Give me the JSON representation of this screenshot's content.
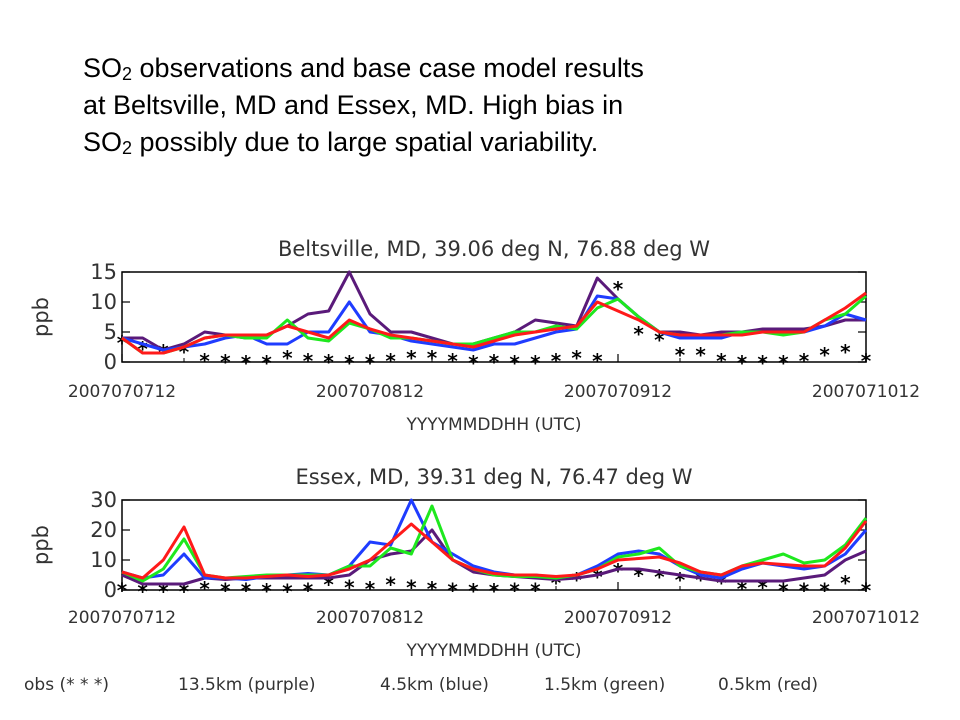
{
  "slide": {
    "title_line1_a": "SO",
    "title_line1_sub": "2",
    "title_line1_b": " observations and base case model results",
    "title_line2": "at Beltsville, MD and Essex, MD.  High bias in",
    "title_line3_a": "SO",
    "title_line3_sub": "2",
    "title_line3_b": " possibly due to large spatial variability."
  },
  "legend_labels": {
    "obs": "obs (* * *)",
    "purple": "13.5km (purple)",
    "blue": "4.5km (blue)",
    "green": "1.5km (green)",
    "red": "0.5km (red)"
  },
  "colors": {
    "obs": "#000000",
    "purple": "#5a1a7a",
    "blue": "#1f3cff",
    "green": "#1ee81e",
    "red": "#ff1a1a",
    "axis": "#000000",
    "text": "#333333"
  },
  "chart_data": [
    {
      "type": "line",
      "title": "Beltsville, MD, 39.06 deg N, 76.88 deg W",
      "xlabel": "YYYYMMDDHH (UTC)",
      "ylabel": "ppb",
      "x_ticks": [
        "2007070712",
        "2007070812",
        "2007070912",
        "2007071012"
      ],
      "x_range_hours": [
        0,
        72
      ],
      "y_ticks": [
        0,
        5,
        10,
        15
      ],
      "ylim": [
        0,
        15
      ],
      "x": [
        0,
        2,
        4,
        6,
        8,
        10,
        12,
        14,
        16,
        18,
        20,
        22,
        24,
        26,
        28,
        30,
        32,
        34,
        36,
        38,
        40,
        42,
        44,
        46,
        48,
        50,
        52,
        54,
        56,
        58,
        60,
        62,
        64,
        66,
        68,
        70,
        72
      ],
      "series": [
        {
          "name": "obs",
          "marker": "asterisk",
          "values": [
            3.5,
            2.5,
            2,
            2,
            0.5,
            0.3,
            0.2,
            0.2,
            1,
            0.5,
            0.3,
            0.2,
            0.2,
            0.5,
            1,
            1,
            0.5,
            0.2,
            0.3,
            0.2,
            0.2,
            0.5,
            1,
            0.5,
            12.5,
            5,
            4,
            1.5,
            1.5,
            0.5,
            0.2,
            0.2,
            0.2,
            0.5,
            1.5,
            2,
            0.5
          ]
        },
        {
          "name": "13.5km",
          "values": [
            4,
            4,
            2,
            3,
            5,
            4.5,
            4,
            4.5,
            6,
            8,
            8.5,
            16,
            8,
            5,
            5,
            4,
            3,
            3,
            4,
            5,
            7,
            6.5,
            6,
            14,
            10.5,
            7.5,
            5,
            5,
            4.5,
            5,
            5,
            5.5,
            5.5,
            5.5,
            6,
            7,
            7
          ]
        },
        {
          "name": "4.5km",
          "values": [
            4,
            3,
            2,
            2.5,
            3,
            4,
            4.5,
            3,
            3,
            5,
            5,
            10,
            5,
            4.5,
            3.5,
            3,
            2.5,
            2,
            3,
            3,
            4,
            5,
            5.5,
            11,
            10.5,
            7.5,
            5,
            4,
            4,
            4,
            5,
            5,
            5,
            5,
            6,
            8,
            7
          ]
        },
        {
          "name": "1.5km",
          "values": [
            4,
            1.5,
            1.5,
            2.5,
            4,
            4.5,
            4,
            4,
            7,
            4,
            3.5,
            6.5,
            5.5,
            4,
            4,
            3.5,
            3,
            3,
            4,
            5,
            5,
            6,
            5.5,
            9,
            10.5,
            7.5,
            5,
            4.5,
            4.5,
            4.5,
            5,
            5,
            4.5,
            5,
            7,
            8,
            11
          ]
        },
        {
          "name": "0.5km",
          "values": [
            4,
            1.5,
            1.5,
            2.5,
            4,
            4.5,
            4.5,
            4.5,
            6,
            5,
            4,
            7,
            5.5,
            4.5,
            4,
            3.5,
            3,
            2.5,
            3.5,
            4.5,
            5,
            5.5,
            6,
            10,
            8.5,
            7,
            5,
            4.5,
            4.5,
            4.5,
            4.5,
            5,
            5,
            5,
            7,
            9,
            11.5
          ]
        }
      ]
    },
    {
      "type": "line",
      "title": "Essex, MD, 39.31 deg N, 76.47 deg W",
      "xlabel": "YYYYMMDDHH (UTC)",
      "ylabel": "ppb",
      "x_ticks": [
        "2007070712",
        "2007070812",
        "2007070912",
        "2007071012"
      ],
      "x_range_hours": [
        0,
        72
      ],
      "y_ticks": [
        0,
        10,
        20,
        30
      ],
      "ylim": [
        0,
        30
      ],
      "x": [
        0,
        2,
        4,
        6,
        8,
        10,
        12,
        14,
        16,
        18,
        20,
        22,
        24,
        26,
        28,
        30,
        32,
        34,
        36,
        38,
        40,
        42,
        44,
        46,
        48,
        50,
        52,
        54,
        56,
        58,
        60,
        62,
        64,
        66,
        68,
        70,
        72
      ],
      "series": [
        {
          "name": "obs",
          "marker": "asterisk",
          "values": [
            0.5,
            0.2,
            0.2,
            0.2,
            1,
            0.5,
            0.5,
            0.3,
            0.2,
            0.5,
            2.5,
            1.5,
            1,
            2.5,
            1.5,
            1,
            0.5,
            0.3,
            0.3,
            0.5,
            0.5,
            3,
            4,
            5,
            7,
            5.5,
            5,
            4,
            4,
            3,
            1,
            1.5,
            0.5,
            0.5,
            0.5,
            3,
            0.5
          ]
        },
        {
          "name": "13.5km",
          "values": [
            5,
            2,
            2,
            2,
            4,
            3.5,
            4,
            4,
            4,
            4,
            4,
            5,
            10,
            12,
            13,
            20,
            10,
            6,
            5,
            4.5,
            4,
            3.5,
            4,
            5,
            7,
            7,
            6,
            5,
            4,
            3,
            3,
            3,
            3,
            4,
            5,
            10,
            13
          ]
        },
        {
          "name": "4.5km",
          "values": [
            6,
            4,
            5,
            12,
            4,
            4,
            3.5,
            4.5,
            5,
            5.5,
            5,
            8,
            16,
            15,
            30,
            16,
            12,
            8,
            6,
            5,
            5,
            4,
            5,
            8,
            12,
            13,
            12,
            8,
            5,
            4,
            7,
            9,
            8,
            7,
            8,
            12,
            20
          ]
        },
        {
          "name": "1.5km",
          "values": [
            6,
            3,
            7,
            17,
            5,
            4,
            4.5,
            5,
            5,
            5,
            5,
            8,
            8,
            14,
            12,
            28,
            10,
            7,
            5,
            4.5,
            4.5,
            4,
            5,
            7,
            11,
            12,
            14,
            8,
            6,
            5,
            8,
            10,
            12,
            9,
            10,
            15,
            24
          ]
        },
        {
          "name": "0.5km",
          "values": [
            6,
            4,
            10,
            21,
            5,
            4,
            4,
            4.5,
            5,
            4.5,
            5,
            7,
            10,
            16,
            22,
            16,
            10,
            7,
            5.5,
            5,
            5,
            4.5,
            5,
            7,
            10,
            10.5,
            11,
            9,
            6,
            5,
            8,
            9,
            8.5,
            8,
            8,
            14,
            23
          ]
        }
      ]
    }
  ]
}
